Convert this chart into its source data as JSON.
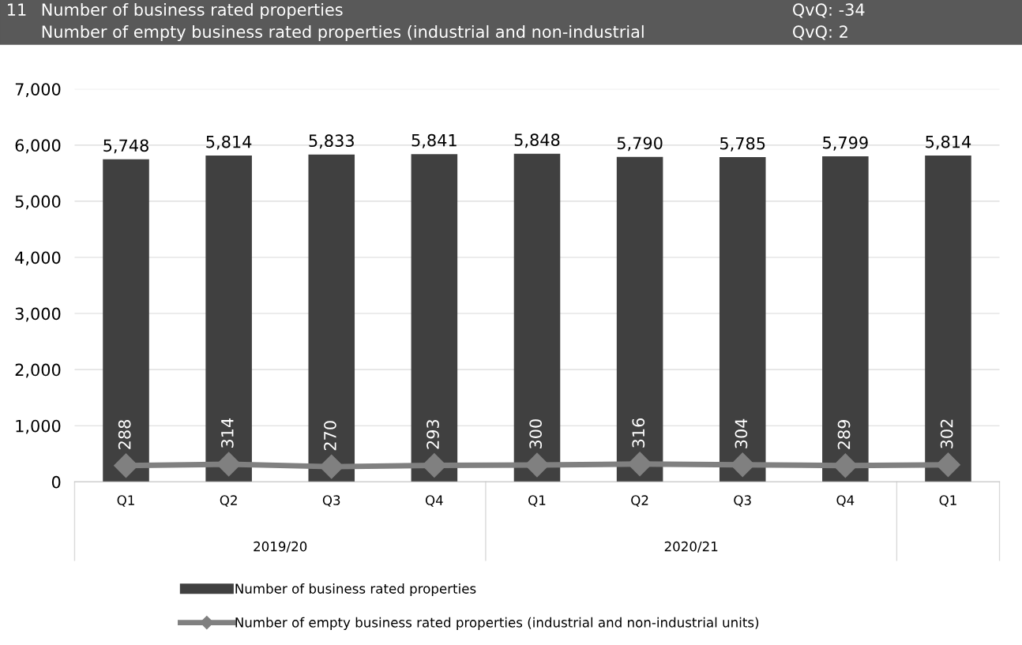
{
  "chart_data": {
    "type": "bar",
    "title": "Number of business rated properties",
    "subtitle": "Number of empty business rated properties (industrial and non-industrial",
    "annotations": [
      "11",
      "QvQ: -34",
      "QvQ: 2",
      "2019/20",
      "2020/21"
    ],
    "categories": [
      "Q1",
      "Q2",
      "Q3",
      "Q4",
      "Q1",
      "Q2",
      "Q3",
      "Q4",
      "Q1"
    ],
    "series": [
      {
        "name": "Number of business rated properties",
        "color": "#404040",
        "values": [
          5748,
          5814,
          5833,
          5841,
          5848,
          5790,
          5785,
          5799,
          5814
        ],
        "value_labels": [
          "5,748",
          "5,814",
          "5,833",
          "5,841",
          "5,848",
          "5,790",
          "5,785",
          "5,799",
          "5,814"
        ]
      },
      {
        "name": "Number of empty business rated properties (industrial and non-industrial units)",
        "type": "line",
        "color": "#808080",
        "marker": "diamond",
        "values": [
          288,
          314,
          270,
          293,
          300,
          316,
          304,
          289,
          302
        ],
        "value_labels": [
          "288",
          "314",
          "270",
          "293",
          "300",
          "316",
          "304",
          "289",
          "302"
        ]
      }
    ],
    "ylim": [
      0,
      7000
    ],
    "yticks": [
      0,
      {
        "value": 1000,
        "label": "1,000"
      },
      {
        "value": 2000,
        "label": "2,000"
      },
      {
        "value": 3000,
        "label": "3,000"
      },
      {
        "value": 4000,
        "label": "4,000"
      },
      {
        "value": 5000,
        "label": "5,000"
      },
      {
        "value": 6000,
        "label": "6,000"
      },
      {
        "value": 7000,
        "label": "7,000"
      }
    ],
    "grid": "y",
    "legend": "bottom"
  }
}
